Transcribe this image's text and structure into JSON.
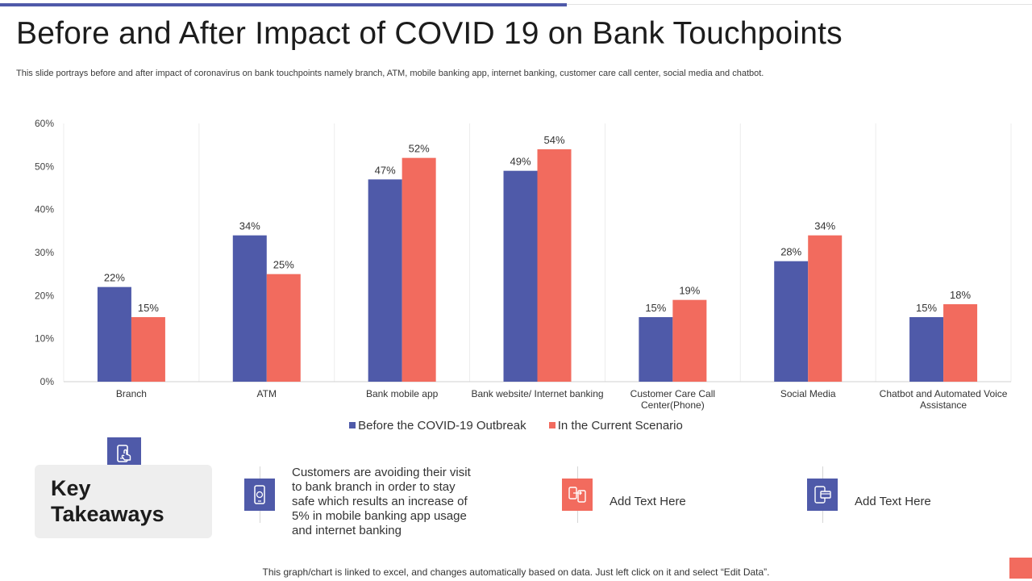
{
  "title": "Before and After Impact of COVID 19 on Bank Touchpoints",
  "subtitle": "This slide portrays before and after impact of coronavirus on bank touchpoints namely branch, ATM,  mobile banking app, internet banking, customer care call center, social media and chatbot.",
  "colors": {
    "accent": "#4f5aa9",
    "secondary": "#f26b5e"
  },
  "chart_data": {
    "type": "bar",
    "categories": [
      [
        "Branch"
      ],
      [
        "ATM"
      ],
      [
        "Bank mobile app"
      ],
      [
        "Bank website/ Internet banking"
      ],
      [
        "Customer Care Call",
        "Center(Phone)"
      ],
      [
        "Social Media"
      ],
      [
        "Chatbot and Automated Voice",
        "Assistance"
      ]
    ],
    "series": [
      {
        "name": "Before the COVID-19 Outbreak",
        "color": "#4f5aa9",
        "values": [
          22,
          34,
          47,
          49,
          15,
          28,
          15
        ]
      },
      {
        "name": "In the Current Scenario",
        "color": "#f26b5e",
        "values": [
          15,
          25,
          52,
          54,
          19,
          34,
          18
        ]
      }
    ],
    "ylim": [
      0,
      60
    ],
    "yticks": [
      0,
      10,
      20,
      30,
      40,
      50,
      60
    ],
    "value_suffix": "%",
    "legend_position": "bottom"
  },
  "key_takeaways": {
    "title": "Key Takeaways",
    "items": [
      {
        "icon": "mobile-banking-icon",
        "text": "Customers are avoiding their visit to bank branch in order to stay safe which results an increase of 5% in mobile banking app usage and internet banking",
        "color": "#4f5aa9"
      },
      {
        "icon": "transfer-icon",
        "text": "Add Text Here",
        "color": "#f26b5e"
      },
      {
        "icon": "payment-icon",
        "text": "Add Text Here",
        "color": "#4f5aa9"
      }
    ]
  },
  "footer": "This graph/chart is linked to excel,  and changes automatically based on data. Just left click on it and select “Edit Data”."
}
